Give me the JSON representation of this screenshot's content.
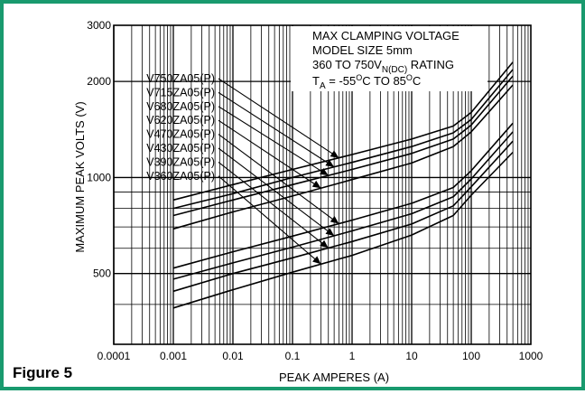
{
  "figure_label": "Figure 5",
  "frame_color": "#199a6e",
  "chart_data": {
    "type": "line",
    "xscale": "log",
    "yscale": "log",
    "xlim": [
      0.0001,
      1000
    ],
    "ylim": [
      300,
      3000
    ],
    "grid": true,
    "xlabel": "PEAK AMPERES (A)",
    "ylabel": "MAXIMUM PEAK VOLTS (V)",
    "xticks": [
      "0.0001",
      "0.001",
      "0.01",
      "0.1",
      "1",
      "10",
      "100",
      "1000"
    ],
    "yticks": [
      "500",
      "1000",
      "2000",
      "3000"
    ],
    "annotation": {
      "line1": "MAX CLAMPING VOLTAGE",
      "line2": "MODEL SIZE 5mm",
      "line3_pre": "360 TO 750V",
      "line3_sub": "N(DC)",
      "line3_post": " RATING",
      "line4_ta": "T",
      "line4_ta_sub": "A",
      "line4_a": " = -55",
      "line4_deg1": "O",
      "line4_b": "C TO 85",
      "line4_deg2": "O",
      "line4_c": "C"
    },
    "series": [
      {
        "name": "V750ZA05(P)",
        "x": [
          0.001,
          0.01,
          0.1,
          1,
          10,
          50,
          100,
          500
        ],
        "y": [
          850,
          950,
          1060,
          1180,
          1320,
          1450,
          1600,
          2300
        ]
      },
      {
        "name": "V715ZA05(P)",
        "x": [
          0.001,
          0.01,
          0.1,
          1,
          10,
          50,
          100,
          500
        ],
        "y": [
          800,
          890,
          1000,
          1115,
          1250,
          1380,
          1520,
          2180
        ]
      },
      {
        "name": "V680ZA05(P)",
        "x": [
          0.001,
          0.01,
          0.1,
          1,
          10,
          50,
          100,
          500
        ],
        "y": [
          760,
          850,
          950,
          1060,
          1190,
          1320,
          1460,
          2080
        ]
      },
      {
        "name": "V620ZA05(P)",
        "x": [
          0.001,
          0.01,
          0.1,
          1,
          10,
          50,
          100,
          500
        ],
        "y": [
          690,
          780,
          875,
          985,
          1110,
          1250,
          1390,
          1950
        ]
      },
      {
        "name": "V470ZA05(P)",
        "x": [
          0.001,
          0.01,
          0.1,
          1,
          10,
          50,
          100,
          500
        ],
        "y": [
          520,
          585,
          655,
          735,
          830,
          930,
          1050,
          1480
        ]
      },
      {
        "name": "V430ZA05(P)",
        "x": [
          0.001,
          0.01,
          0.1,
          1,
          10,
          50,
          100,
          500
        ],
        "y": [
          480,
          540,
          605,
          680,
          770,
          870,
          990,
          1390
        ]
      },
      {
        "name": "V390ZA05(P)",
        "x": [
          0.001,
          0.01,
          0.1,
          1,
          10,
          50,
          100,
          500
        ],
        "y": [
          440,
          500,
          560,
          630,
          715,
          815,
          935,
          1300
        ]
      },
      {
        "name": "V360ZA05(P)",
        "x": [
          0.001,
          0.01,
          0.1,
          1,
          10,
          50,
          100,
          500
        ],
        "y": [
          390,
          445,
          505,
          570,
          660,
          760,
          880,
          1200
        ]
      }
    ]
  }
}
